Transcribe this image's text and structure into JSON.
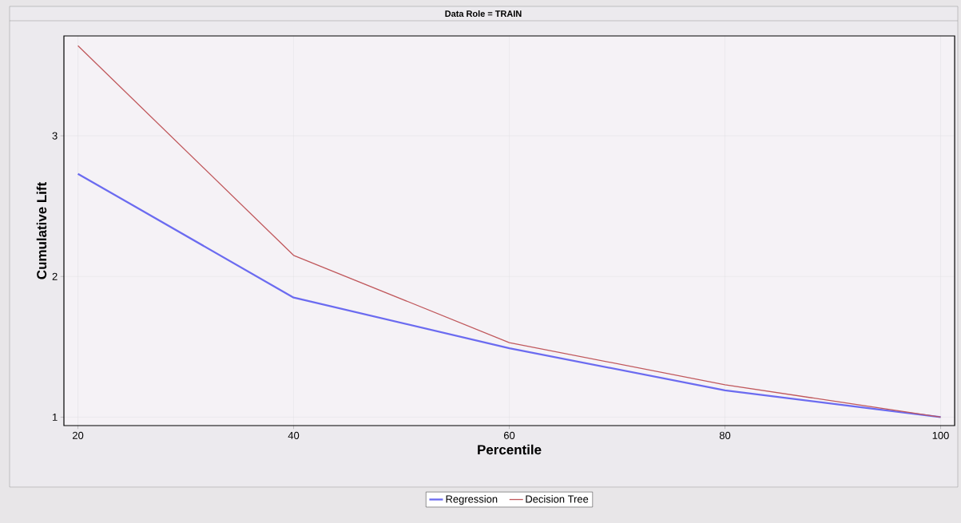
{
  "chart_data": {
    "type": "line",
    "title": "Data Role = TRAIN",
    "xlabel": "Percentile",
    "ylabel": "Cumulative Lift",
    "x": [
      20,
      40,
      60,
      80,
      100
    ],
    "series": [
      {
        "name": "Regression",
        "color": "#6b6bf0",
        "values": [
          2.73,
          1.85,
          1.49,
          1.19,
          1.0
        ]
      },
      {
        "name": "Decision Tree",
        "color": "#c0585c",
        "values": [
          3.64,
          2.15,
          1.53,
          1.23,
          1.0
        ]
      }
    ],
    "xlim": [
      18.7,
      101.3
    ],
    "ylim": [
      0.94,
      3.71
    ],
    "xticks": [
      20,
      40,
      60,
      80,
      100
    ],
    "yticks": [
      1,
      2,
      3
    ],
    "grid": true,
    "legend": "bottom"
  }
}
